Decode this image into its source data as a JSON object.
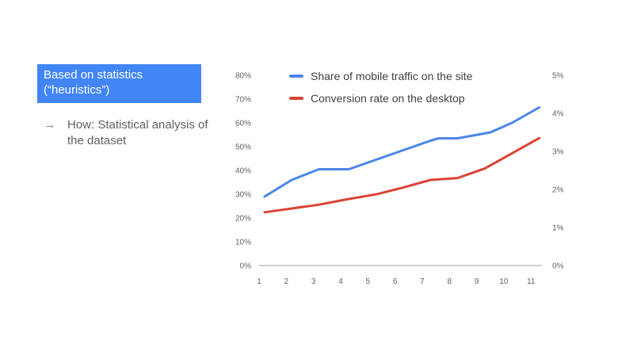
{
  "tag": {
    "label": "Based on statistics (“heuristics”)"
  },
  "how": {
    "arrow": "→",
    "text": "How: Statistical analysis of the dataset"
  },
  "chart_data": {
    "type": "line",
    "title": "",
    "x": [
      1.2,
      2.2,
      3.2,
      4.3,
      5.3,
      6.3,
      7.3,
      8.3,
      9.3,
      10.3,
      11.3
    ],
    "xticks": [
      1,
      2,
      3,
      4,
      5,
      6,
      7,
      8,
      9,
      10,
      11
    ],
    "xlim": [
      1,
      11.4
    ],
    "y_left": {
      "ylim": [
        0,
        80
      ],
      "ticks": [
        "0%",
        "10%",
        "20%",
        "30%",
        "40%",
        "50%",
        "60%",
        "70%",
        "80%"
      ]
    },
    "y_right": {
      "ylim": [
        0,
        5
      ],
      "ticks": [
        "0%",
        "1%",
        "2%",
        "3%",
        "4%",
        "5%"
      ]
    },
    "series": [
      {
        "name": "Share of mobile traffic on the site",
        "axis": "left",
        "color": "#4a86e8",
        "x": [
          1.2,
          2.2,
          3.2,
          4.3,
          5.3,
          6.3,
          7.3,
          7.6,
          8.3,
          9.5,
          10.3,
          11.3
        ],
        "values": [
          29,
          36,
          40.5,
          40.5,
          44.5,
          48.5,
          52.5,
          53.5,
          53.5,
          56,
          60,
          66.5
        ]
      },
      {
        "name": "Conversion rate on the desktop",
        "axis": "right",
        "color": "#db4437",
        "x": [
          1.2,
          2.2,
          3.2,
          4.3,
          5.3,
          6.3,
          7.3,
          8.3,
          9.3,
          10.3,
          11.3
        ],
        "values": [
          1.4,
          1.5,
          1.6,
          1.75,
          1.87,
          2.05,
          2.25,
          2.3,
          2.55,
          2.95,
          3.35
        ]
      }
    ],
    "legend": "top",
    "grid": false
  }
}
